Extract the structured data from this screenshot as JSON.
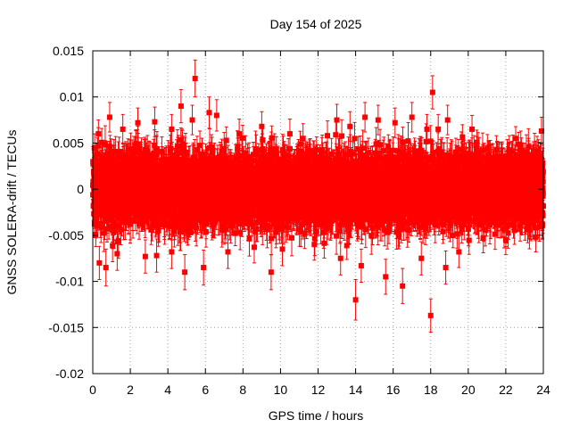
{
  "chart_data": {
    "type": "scatter",
    "title": "Day 154 of 2025",
    "xlabel": "GPS time / hours",
    "ylabel": "GNSS SOLERA-drift / TECUs",
    "xlim": [
      0,
      24
    ],
    "ylim": [
      -0.02,
      0.015
    ],
    "xticks": [
      0,
      2,
      4,
      6,
      8,
      10,
      12,
      14,
      16,
      18,
      20,
      22,
      24
    ],
    "xtick_labels": [
      "0",
      "2",
      "4",
      "6",
      "8",
      "10",
      "12",
      "14",
      "16",
      "18",
      "20",
      "22",
      "24"
    ],
    "yticks": [
      -0.02,
      -0.015,
      -0.01,
      -0.005,
      0,
      0.005,
      0.01,
      0.015
    ],
    "ytick_labels": [
      "-0.02",
      "-0.015",
      "-0.01",
      "-0.005",
      "0",
      "0.005",
      "0.01",
      "0.015"
    ],
    "grid": true,
    "series_color": "#ff0000",
    "marker": "square",
    "error_bars": true,
    "points": [
      {
        "x": 0.1,
        "y": 0.0045,
        "err": 0.0015
      },
      {
        "x": 0.3,
        "y": 0.006,
        "err": 0.0015
      },
      {
        "x": 0.35,
        "y": -0.008,
        "err": 0.0018
      },
      {
        "x": 0.7,
        "y": -0.0085,
        "err": 0.002
      },
      {
        "x": 0.9,
        "y": 0.0078,
        "err": 0.0016
      },
      {
        "x": 1.3,
        "y": -0.007,
        "err": 0.0018
      },
      {
        "x": 1.6,
        "y": 0.0065,
        "err": 0.0016
      },
      {
        "x": 2.4,
        "y": 0.0072,
        "err": 0.0016
      },
      {
        "x": 2.8,
        "y": -0.0073,
        "err": 0.0018
      },
      {
        "x": 3.3,
        "y": 0.0073,
        "err": 0.0016
      },
      {
        "x": 3.4,
        "y": -0.0072,
        "err": 0.0018
      },
      {
        "x": 4.2,
        "y": 0.0065,
        "err": 0.0016
      },
      {
        "x": 4.2,
        "y": -0.0068,
        "err": 0.0018
      },
      {
        "x": 4.7,
        "y": 0.009,
        "err": 0.0018
      },
      {
        "x": 4.9,
        "y": -0.009,
        "err": 0.0019
      },
      {
        "x": 5.3,
        "y": 0.0075,
        "err": 0.0016
      },
      {
        "x": 5.45,
        "y": 0.012,
        "err": 0.002
      },
      {
        "x": 5.9,
        "y": -0.0085,
        "err": 0.0019
      },
      {
        "x": 6.2,
        "y": 0.0083,
        "err": 0.0017
      },
      {
        "x": 6.6,
        "y": 0.008,
        "err": 0.0017
      },
      {
        "x": 7.2,
        "y": -0.0068,
        "err": 0.0018
      },
      {
        "x": 7.8,
        "y": 0.006,
        "err": 0.0016
      },
      {
        "x": 8.6,
        "y": -0.0063,
        "err": 0.0017
      },
      {
        "x": 9.0,
        "y": 0.0068,
        "err": 0.0016
      },
      {
        "x": 9.5,
        "y": -0.009,
        "err": 0.0019
      },
      {
        "x": 10.1,
        "y": -0.0065,
        "err": 0.0018
      },
      {
        "x": 10.5,
        "y": 0.006,
        "err": 0.0016
      },
      {
        "x": 11.2,
        "y": 0.0055,
        "err": 0.0016
      },
      {
        "x": 11.8,
        "y": -0.006,
        "err": 0.0017
      },
      {
        "x": 12.5,
        "y": 0.0058,
        "err": 0.0016
      },
      {
        "x": 13.0,
        "y": 0.0075,
        "err": 0.0017
      },
      {
        "x": 13.2,
        "y": -0.0075,
        "err": 0.0018
      },
      {
        "x": 13.7,
        "y": 0.0068,
        "err": 0.0016
      },
      {
        "x": 14.0,
        "y": -0.012,
        "err": 0.0022
      },
      {
        "x": 14.3,
        "y": -0.0083,
        "err": 0.0018
      },
      {
        "x": 14.5,
        "y": 0.0078,
        "err": 0.0016
      },
      {
        "x": 15.2,
        "y": 0.0075,
        "err": 0.0016
      },
      {
        "x": 15.6,
        "y": -0.0095,
        "err": 0.0019
      },
      {
        "x": 16.1,
        "y": 0.0072,
        "err": 0.0016
      },
      {
        "x": 16.5,
        "y": -0.0105,
        "err": 0.0019
      },
      {
        "x": 17.0,
        "y": 0.0078,
        "err": 0.0016
      },
      {
        "x": 17.5,
        "y": -0.0075,
        "err": 0.0018
      },
      {
        "x": 17.8,
        "y": 0.0065,
        "err": 0.0016
      },
      {
        "x": 18.0,
        "y": -0.0137,
        "err": 0.0018
      },
      {
        "x": 18.1,
        "y": 0.0105,
        "err": 0.0018
      },
      {
        "x": 18.4,
        "y": 0.0065,
        "err": 0.0016
      },
      {
        "x": 18.8,
        "y": -0.0085,
        "err": 0.0018
      },
      {
        "x": 18.9,
        "y": 0.0075,
        "err": 0.0016
      },
      {
        "x": 19.5,
        "y": -0.0068,
        "err": 0.0017
      },
      {
        "x": 20.2,
        "y": 0.0065,
        "err": 0.0015
      },
      {
        "x": 20.8,
        "y": -0.0053,
        "err": 0.0016
      },
      {
        "x": 21.5,
        "y": 0.0043,
        "err": 0.0015
      },
      {
        "x": 22.0,
        "y": -0.0055,
        "err": 0.0016
      },
      {
        "x": 22.8,
        "y": 0.0048,
        "err": 0.0015
      },
      {
        "x": 23.6,
        "y": -0.0052,
        "err": 0.0016
      },
      {
        "x": 23.9,
        "y": 0.0063,
        "err": 0.0015
      }
    ],
    "dense_band": {
      "x_range": [
        0,
        24
      ],
      "typical_spread": 0.0035,
      "typical_error": 0.0016,
      "points_per_hour": 240
    }
  }
}
